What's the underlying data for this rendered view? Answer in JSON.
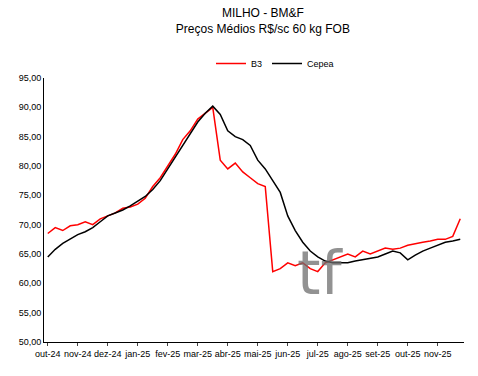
{
  "chart_data": {
    "type": "line",
    "title": "MILHO - BM&F",
    "subtitle": "Preços Médios R$/sc 60 kg FOB",
    "categories": [
      "out-24",
      null,
      null,
      null,
      "nov-24",
      null,
      null,
      null,
      "dez-24",
      null,
      null,
      null,
      "jan-25",
      null,
      null,
      null,
      "fev-25",
      null,
      null,
      null,
      "mar-25",
      null,
      null,
      null,
      "abr-25",
      null,
      null,
      null,
      "mai-25",
      null,
      null,
      null,
      "jun-25",
      null,
      null,
      null,
      "jul-25",
      null,
      null,
      null,
      "ago-25",
      null,
      null,
      null,
      "set-25",
      null,
      null,
      null,
      "out-25",
      null,
      null,
      null,
      "nov-25",
      null,
      null,
      null
    ],
    "series": [
      {
        "name": "B3",
        "color": "#ff0000",
        "values": [
          68.5,
          69.5,
          69.0,
          69.8,
          70.0,
          70.5,
          70.0,
          71.0,
          71.5,
          72.0,
          72.8,
          73.0,
          73.5,
          74.5,
          76.5,
          78.0,
          80.0,
          82.0,
          84.5,
          86.0,
          88.0,
          89.0,
          90.0,
          81.0,
          79.5,
          80.5,
          79.0,
          78.0,
          77.0,
          76.5,
          62.0,
          62.5,
          63.5,
          63.0,
          63.5,
          62.5,
          62.0,
          63.5,
          64.0,
          64.5,
          65.0,
          64.5,
          65.5,
          65.0,
          65.5,
          66.0,
          65.8,
          66.0,
          66.5,
          66.8,
          67.0,
          67.2,
          67.5,
          67.5,
          68.0,
          71.0
        ]
      },
      {
        "name": "Cepea",
        "color": "#000000",
        "values": [
          64.5,
          65.8,
          66.8,
          67.5,
          68.3,
          68.8,
          69.5,
          70.5,
          71.5,
          72.0,
          72.5,
          73.2,
          74.0,
          74.8,
          76.0,
          77.5,
          79.5,
          81.5,
          83.5,
          85.5,
          87.5,
          89.0,
          90.2,
          88.8,
          86.0,
          85.0,
          84.5,
          83.5,
          81.0,
          79.5,
          77.5,
          75.5,
          71.5,
          69.0,
          67.0,
          65.5,
          64.5,
          63.8,
          63.5,
          63.5,
          63.5,
          63.8,
          64.0,
          64.2,
          64.5,
          65.0,
          65.5,
          65.2,
          64.0,
          64.8,
          65.5,
          66.0,
          66.5,
          67.0,
          67.2,
          67.5
        ]
      }
    ],
    "ylim": [
      50,
      95
    ],
    "yticks": [
      {
        "value": 50,
        "label": "50,00"
      },
      {
        "value": 55,
        "label": "55,00"
      },
      {
        "value": 60,
        "label": "60,00"
      },
      {
        "value": 65,
        "label": "65,00"
      },
      {
        "value": 70,
        "label": "70,00"
      },
      {
        "value": 75,
        "label": "75,00"
      },
      {
        "value": 80,
        "label": "80,00"
      },
      {
        "value": 85,
        "label": "85,00"
      },
      {
        "value": 90,
        "label": "90,00"
      },
      {
        "value": 95,
        "label": "95,00"
      }
    ],
    "annotations": [
      "tf"
    ],
    "grid": false,
    "legend": "top"
  }
}
